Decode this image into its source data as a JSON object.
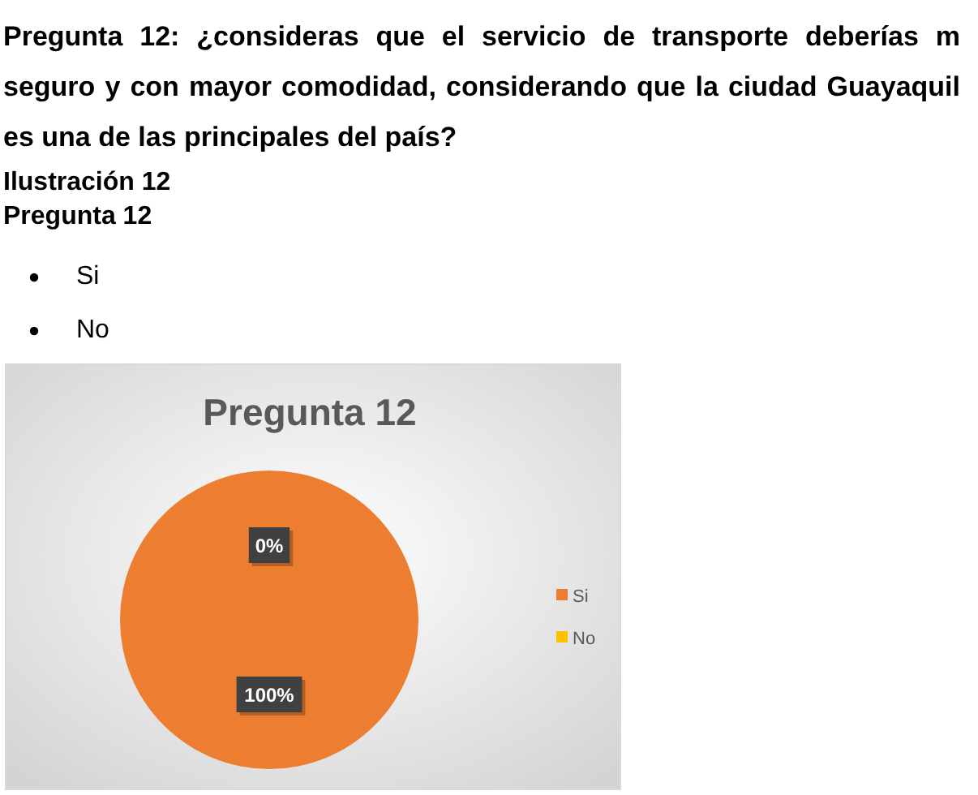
{
  "chart_data": {
    "type": "pie",
    "title": "Pregunta 12",
    "annotations": [
      "Pregunta 12: ¿consideras que el servicio de transporte deberías m seguro y con mayor comodidad, considerando que la ciudad Guayaquil es una de las principales del país?",
      "Ilustración 12",
      "Pregunta 12",
      "Si",
      "No"
    ],
    "categories": [
      "Si",
      "No"
    ],
    "values": [
      100,
      0
    ],
    "colors": [
      "#ed7d31",
      "#ffc000"
    ],
    "value_labels": [
      "100%",
      "0%"
    ],
    "legend": "right"
  }
}
